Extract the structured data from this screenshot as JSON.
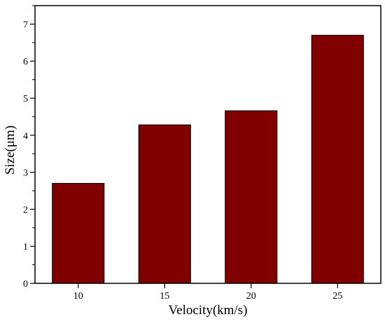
{
  "chart_data": {
    "type": "bar",
    "categories": [
      "10",
      "15",
      "20",
      "25"
    ],
    "values": [
      2.7,
      4.28,
      4.66,
      6.7
    ],
    "title": "",
    "xlabel": "Velocity(km/s)",
    "ylabel": "Size(μm)",
    "ylim": [
      0,
      7.5
    ],
    "yticks": [
      0,
      1,
      2,
      3,
      4,
      5,
      6,
      7
    ],
    "grid": false,
    "legend": "none",
    "colors": {
      "bar_fill": "#800000",
      "bar_stroke": "#000000",
      "axis": "#000000"
    }
  }
}
